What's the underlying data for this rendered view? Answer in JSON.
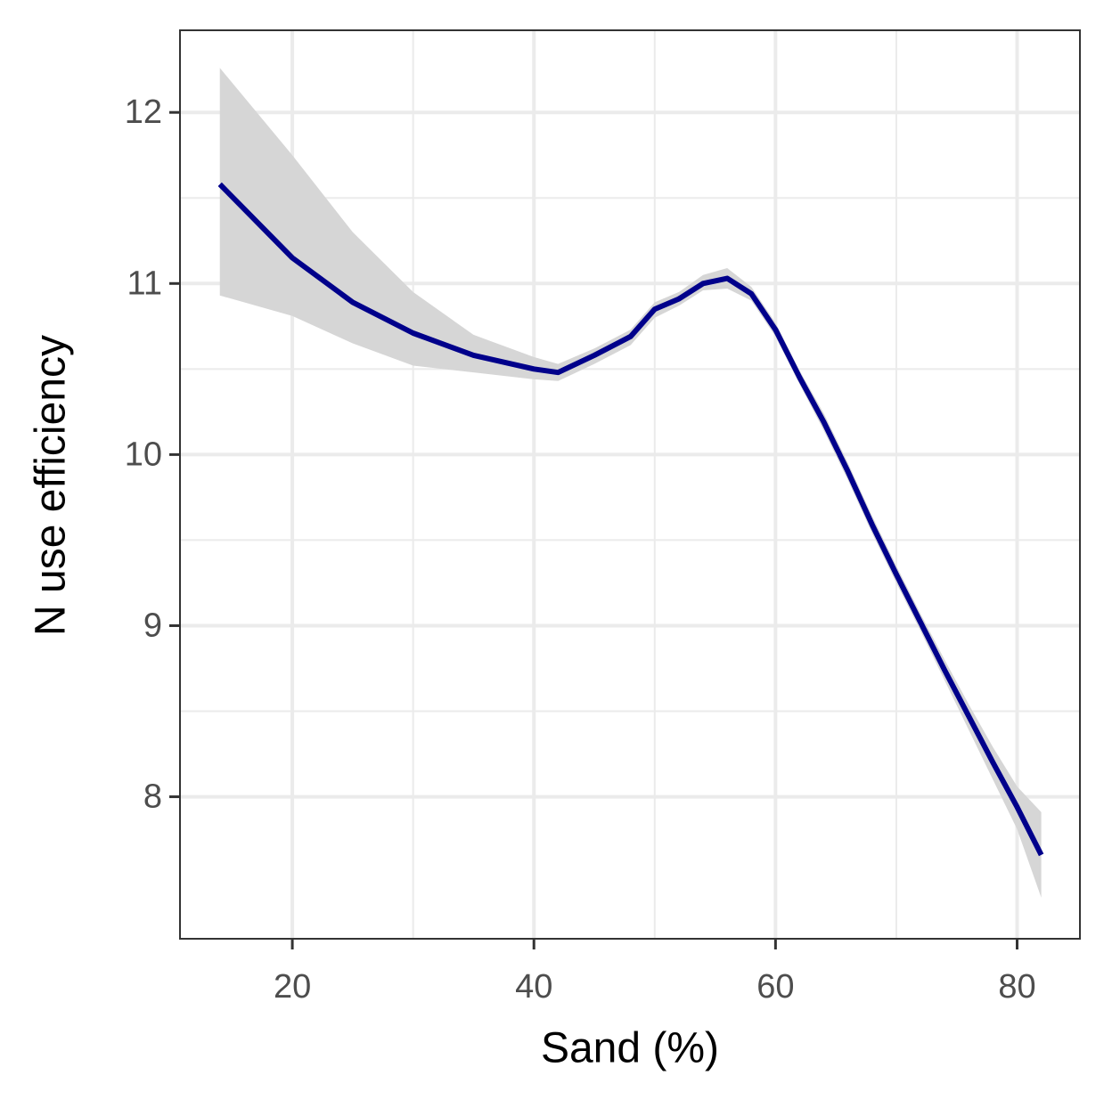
{
  "chart_data": {
    "type": "line",
    "x_label": "Sand (%)",
    "y_label": "N use efficiency",
    "x": [
      14,
      20,
      25,
      30,
      35,
      40,
      42,
      45,
      48,
      50,
      52,
      54,
      56,
      58,
      60,
      62,
      64,
      66,
      68,
      70,
      72,
      74,
      76,
      78,
      80,
      82
    ],
    "series": [
      {
        "color": "#00008b",
        "band_color": "#d6d6d6",
        "values": [
          11.58,
          11.15,
          10.89,
          10.71,
          10.58,
          10.5,
          10.48,
          10.58,
          10.69,
          10.85,
          10.91,
          11.0,
          11.03,
          10.94,
          10.73,
          10.45,
          10.19,
          9.9,
          9.59,
          9.3,
          9.02,
          8.74,
          8.47,
          8.2,
          7.94,
          7.66
        ],
        "lower": [
          10.93,
          10.81,
          10.65,
          10.52,
          10.48,
          10.44,
          10.43,
          10.53,
          10.64,
          10.8,
          10.87,
          10.96,
          10.97,
          10.9,
          10.69,
          10.41,
          10.14,
          9.85,
          9.54,
          9.25,
          8.97,
          8.68,
          8.39,
          8.1,
          7.81,
          7.41
        ],
        "upper": [
          12.26,
          11.75,
          11.3,
          10.95,
          10.7,
          10.57,
          10.53,
          10.62,
          10.73,
          10.89,
          10.95,
          11.05,
          11.09,
          10.98,
          10.77,
          10.49,
          10.24,
          9.95,
          9.64,
          9.35,
          9.07,
          8.8,
          8.54,
          8.29,
          8.06,
          7.91
        ]
      }
    ],
    "xlim": [
      10.7,
      85.2
    ],
    "ylim": [
      7.17,
      12.48
    ],
    "xticks": [
      20,
      40,
      60,
      80
    ],
    "yticks": [
      8,
      9,
      10,
      11,
      12
    ],
    "x_minor_grid": [
      30,
      50,
      70
    ],
    "y_minor_grid": [
      8.5,
      9.5,
      10.5,
      11.5
    ],
    "grid": true
  }
}
